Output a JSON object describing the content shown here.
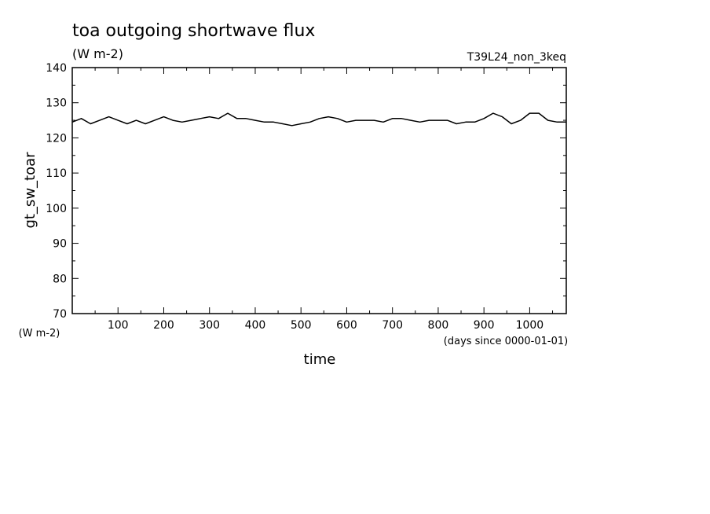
{
  "chart_data": {
    "type": "line",
    "title": "toa outgoing shortwave flux",
    "subtitle": "(W m-2)",
    "run_label": "T39L24_non_3keq",
    "ylabel": "gt_sw_toar",
    "y_units": "(W m-2)",
    "xlabel": "time",
    "x_units": "(days since 0000-01-01)",
    "xlim": [
      0,
      1080
    ],
    "ylim": [
      70,
      140
    ],
    "x_ticks": [
      "100",
      "200",
      "300",
      "400",
      "500",
      "600",
      "700",
      "800",
      "900",
      "1000"
    ],
    "y_ticks": [
      "140",
      "130",
      "120",
      "110",
      "100",
      "90",
      "80",
      "70"
    ],
    "grid": false,
    "series": [
      {
        "x": [
          0,
          20,
          40,
          60,
          80,
          100,
          120,
          140,
          160,
          180,
          200,
          220,
          240,
          260,
          280,
          300,
          320,
          340,
          360,
          380,
          400,
          420,
          440,
          460,
          480,
          500,
          520,
          540,
          560,
          580,
          600,
          620,
          640,
          660,
          680,
          700,
          720,
          740,
          760,
          780,
          800,
          820,
          840,
          860,
          880,
          900,
          920,
          940,
          960,
          980,
          1000,
          1020,
          1040,
          1060,
          1080
        ],
        "y": [
          124.5,
          125.5,
          124.0,
          125.0,
          126.0,
          125.0,
          124.0,
          125.0,
          124.0,
          125.0,
          126.0,
          125.0,
          124.5,
          125.0,
          125.5,
          126.0,
          125.5,
          127.0,
          125.5,
          125.5,
          125.0,
          124.5,
          124.5,
          124.0,
          123.5,
          124.0,
          124.5,
          125.5,
          126.0,
          125.5,
          124.5,
          125.0,
          125.0,
          125.0,
          124.5,
          125.5,
          125.5,
          125.0,
          124.5,
          125.0,
          125.0,
          125.0,
          124.0,
          124.5,
          124.5,
          125.5,
          127.0,
          126.0,
          124.0,
          125.0,
          127.0,
          127.0,
          125.0,
          124.5,
          124.5
        ]
      }
    ]
  }
}
